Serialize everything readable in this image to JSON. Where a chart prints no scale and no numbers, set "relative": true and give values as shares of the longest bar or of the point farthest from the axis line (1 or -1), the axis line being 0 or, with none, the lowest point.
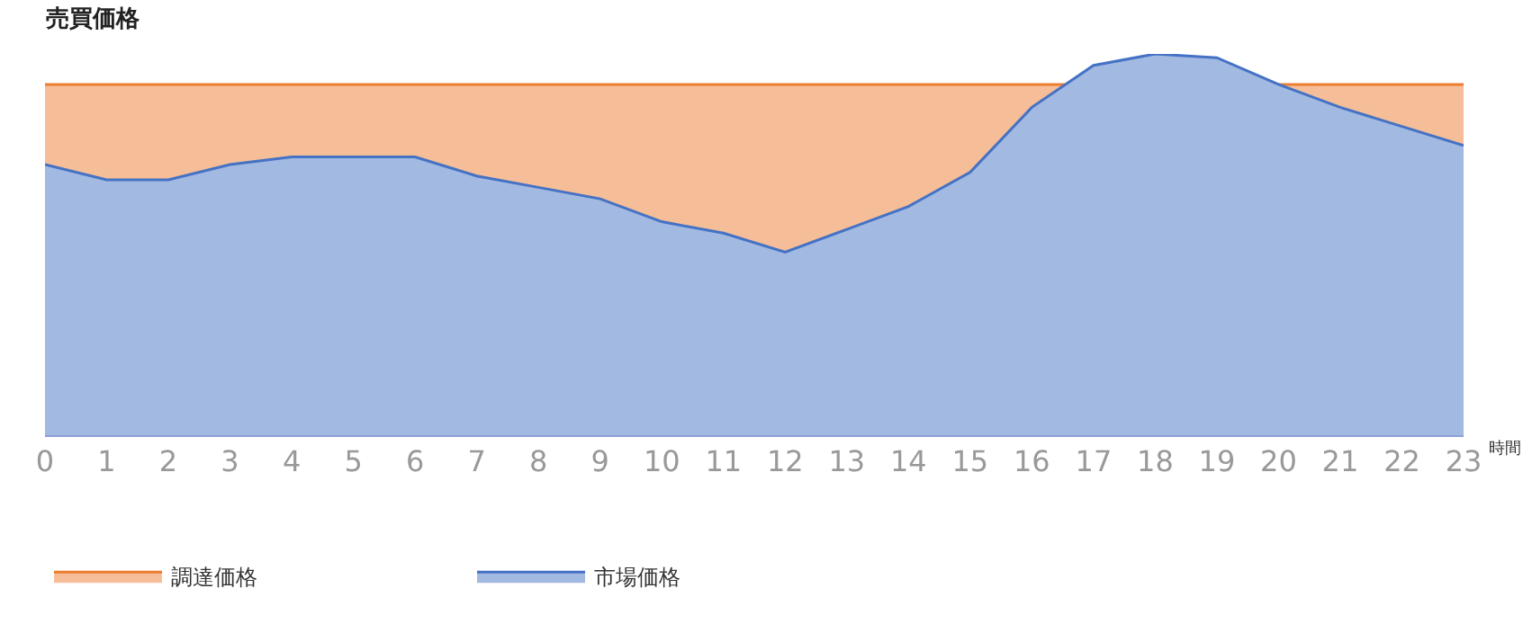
{
  "chart_data": {
    "type": "area",
    "title": "売買価格",
    "xlabel": "時間",
    "relative": true,
    "x": [
      0,
      1,
      2,
      3,
      4,
      5,
      6,
      7,
      8,
      9,
      10,
      11,
      12,
      13,
      14,
      15,
      16,
      17,
      18,
      19,
      20,
      21,
      22,
      23
    ],
    "xlim": [
      0,
      23
    ],
    "xticks": [
      0,
      1,
      2,
      3,
      4,
      5,
      6,
      7,
      8,
      9,
      10,
      11,
      12,
      13,
      14,
      15,
      16,
      17,
      18,
      19,
      20,
      21,
      22,
      23
    ],
    "series": [
      {
        "name": "調達価格",
        "color": "#ed7d31",
        "values": [
          0.92,
          0.92,
          0.92,
          0.92,
          0.92,
          0.92,
          0.92,
          0.92,
          0.92,
          0.92,
          0.92,
          0.92,
          0.92,
          0.92,
          0.92,
          0.92,
          0.92,
          0.92,
          0.92,
          0.92,
          0.92,
          0.92,
          0.92,
          0.92
        ]
      },
      {
        "name": "市場価格",
        "color": "#4472c4",
        "values": [
          0.71,
          0.67,
          0.67,
          0.71,
          0.73,
          0.73,
          0.73,
          0.68,
          0.65,
          0.62,
          0.56,
          0.53,
          0.48,
          0.54,
          0.6,
          0.69,
          0.86,
          0.97,
          1,
          0.99,
          0.92,
          0.86,
          0.81,
          0.76
        ]
      }
    ],
    "grid": false,
    "legend": "bottom left"
  }
}
